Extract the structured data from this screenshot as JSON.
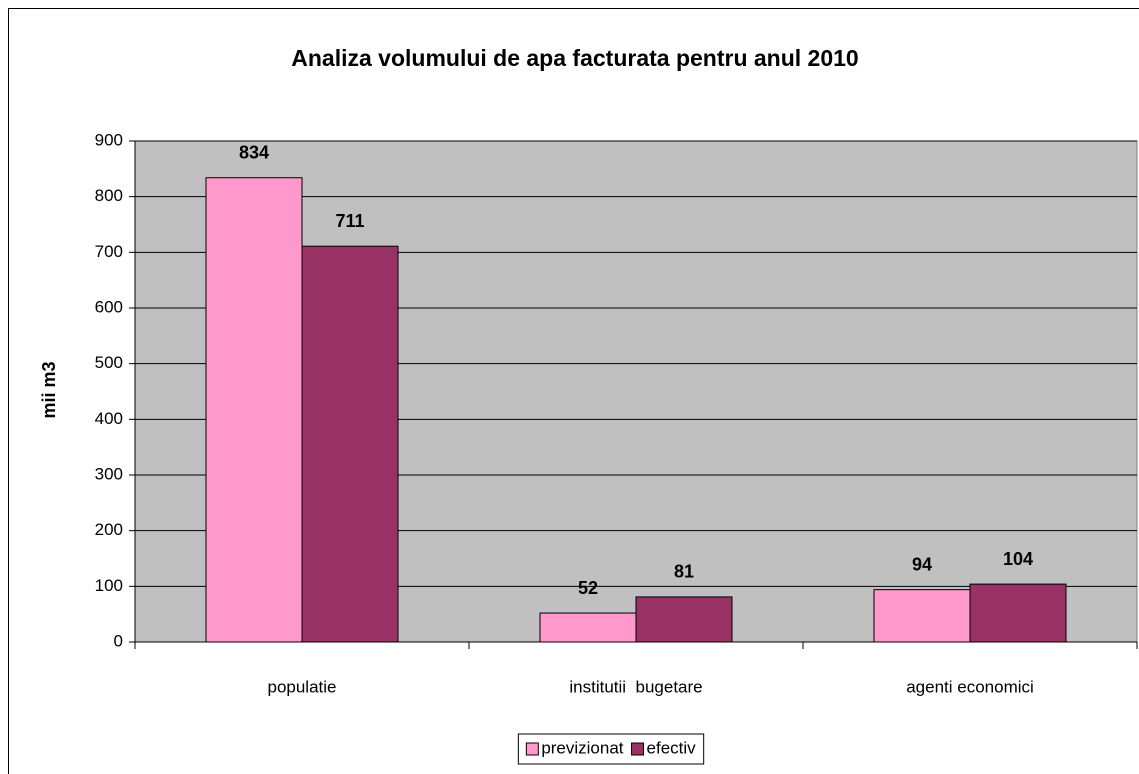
{
  "chart_data": {
    "type": "bar",
    "title": "Analiza volumului de apa facturata pentru anul 2010",
    "y_label": "mii m3",
    "categories": [
      "populatie",
      "institutii  bugetare",
      "agenti economici"
    ],
    "series": [
      {
        "name": "previzionat",
        "color": "#ff99cc",
        "values": [
          834,
          52,
          94
        ]
      },
      {
        "name": "efectiv",
        "color": "#993366",
        "values": [
          711,
          81,
          104
        ]
      }
    ],
    "ylim": [
      0,
      900
    ],
    "yticks": [
      0,
      100,
      200,
      300,
      400,
      500,
      600,
      700,
      800,
      900
    ],
    "grid": true,
    "plot_background": "#c0c0c0",
    "legend": "bottom"
  }
}
